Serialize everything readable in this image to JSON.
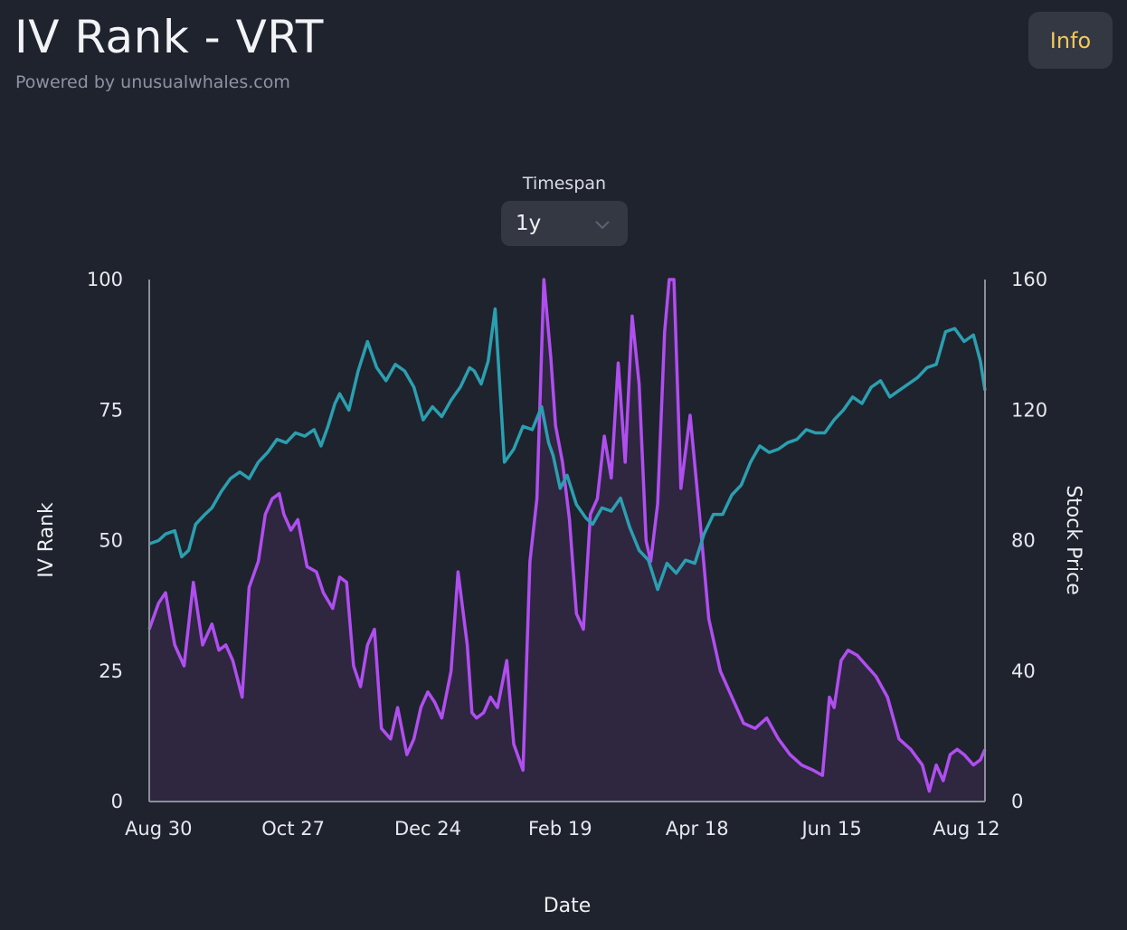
{
  "header": {
    "title": "IV Rank - VRT",
    "subtitle": "Powered by unusualwhales.com",
    "info_label": "Info"
  },
  "controls": {
    "timespan_label": "Timespan",
    "timespan_value": "1y"
  },
  "colors": {
    "iv_rank": "#b04ef0",
    "iv_fill": "#2f2640",
    "stock_price": "#2b9fb0",
    "background": "#1f232d",
    "info_text": "#f1c85c"
  },
  "chart_data": {
    "type": "line",
    "xlabel": "Date",
    "ylabel_left": "IV Rank",
    "ylabel_right": "Stock Price",
    "ylim_left": [
      0,
      100
    ],
    "ylim_right": [
      0,
      160
    ],
    "yticks_left": [
      "0",
      "25",
      "50",
      "75",
      "100"
    ],
    "yticks_right": [
      "0",
      "40",
      "80",
      "120",
      "160"
    ],
    "x_range": [
      "2023-08-26",
      "2024-08-20"
    ],
    "x_ticks": [
      {
        "label": "Aug 30",
        "date": "2023-08-30"
      },
      {
        "label": "Oct 27",
        "date": "2023-10-27"
      },
      {
        "label": "Dec 24",
        "date": "2023-12-24"
      },
      {
        "label": "Feb 19",
        "date": "2024-02-19"
      },
      {
        "label": "Apr 18",
        "date": "2024-04-18"
      },
      {
        "label": "Jun 15",
        "date": "2024-06-15"
      },
      {
        "label": "Aug 12",
        "date": "2024-08-12"
      }
    ],
    "series": [
      {
        "name": "IV Rank",
        "axis": "left",
        "x": [
          "2023-08-26",
          "2023-08-30",
          "2023-09-02",
          "2023-09-06",
          "2023-09-10",
          "2023-09-14",
          "2023-09-18",
          "2023-09-22",
          "2023-09-25",
          "2023-09-28",
          "2023-10-01",
          "2023-10-05",
          "2023-10-08",
          "2023-10-12",
          "2023-10-15",
          "2023-10-18",
          "2023-10-21",
          "2023-10-23",
          "2023-10-26",
          "2023-10-29",
          "2023-11-02",
          "2023-11-06",
          "2023-11-09",
          "2023-11-13",
          "2023-11-16",
          "2023-11-19",
          "2023-11-22",
          "2023-11-25",
          "2023-11-28",
          "2023-12-01",
          "2023-12-04",
          "2023-12-08",
          "2023-12-11",
          "2023-12-15",
          "2023-12-18",
          "2023-12-21",
          "2023-12-24",
          "2023-12-27",
          "2023-12-30",
          "2024-01-03",
          "2024-01-06",
          "2024-01-10",
          "2024-01-12",
          "2024-01-14",
          "2024-01-17",
          "2024-01-20",
          "2024-01-23",
          "2024-01-27",
          "2024-01-30",
          "2024-02-03",
          "2024-02-06",
          "2024-02-09",
          "2024-02-12",
          "2024-02-15",
          "2024-02-17",
          "2024-02-20",
          "2024-02-23",
          "2024-02-26",
          "2024-02-29",
          "2024-03-03",
          "2024-03-06",
          "2024-03-09",
          "2024-03-12",
          "2024-03-15",
          "2024-03-18",
          "2024-03-21",
          "2024-03-24",
          "2024-03-27",
          "2024-03-29",
          "2024-04-01",
          "2024-04-04",
          "2024-04-06",
          "2024-04-08",
          "2024-04-11",
          "2024-04-15",
          "2024-04-19",
          "2024-04-23",
          "2024-04-28",
          "2024-05-03",
          "2024-05-08",
          "2024-05-13",
          "2024-05-18",
          "2024-05-23",
          "2024-05-28",
          "2024-06-02",
          "2024-06-07",
          "2024-06-11",
          "2024-06-14",
          "2024-06-16",
          "2024-06-19",
          "2024-06-22",
          "2024-06-26",
          "2024-06-30",
          "2024-07-04",
          "2024-07-09",
          "2024-07-14",
          "2024-07-19",
          "2024-07-24",
          "2024-07-27",
          "2024-07-30",
          "2024-08-02",
          "2024-08-05",
          "2024-08-08",
          "2024-08-11",
          "2024-08-15",
          "2024-08-18",
          "2024-08-20"
        ],
        "values": [
          33,
          38,
          40,
          30,
          26,
          42,
          30,
          34,
          29,
          30,
          27,
          20,
          41,
          46,
          55,
          58,
          59,
          55,
          52,
          54,
          45,
          44,
          40,
          37,
          43,
          42,
          26,
          22,
          30,
          33,
          14,
          12,
          18,
          9,
          12,
          18,
          21,
          19,
          16,
          25,
          44,
          30,
          17,
          16,
          17,
          20,
          18,
          27,
          11,
          6,
          46,
          58,
          100,
          85,
          72,
          65,
          54,
          36,
          33,
          55,
          58,
          70,
          62,
          84,
          65,
          93,
          80,
          50,
          46,
          57,
          90,
          100,
          100,
          60,
          74,
          55,
          35,
          25,
          20,
          15,
          14,
          16,
          12,
          9,
          7,
          6,
          5,
          20,
          18,
          27,
          29,
          28,
          26,
          24,
          20,
          12,
          10,
          7,
          2,
          7,
          4,
          9,
          10,
          9,
          7,
          8,
          10
        ]
      },
      {
        "name": "Stock Price",
        "axis": "right",
        "x": [
          "2023-08-26",
          "2023-08-30",
          "2023-09-02",
          "2023-09-06",
          "2023-09-09",
          "2023-09-12",
          "2023-09-15",
          "2023-09-19",
          "2023-09-22",
          "2023-09-26",
          "2023-09-30",
          "2023-10-04",
          "2023-10-08",
          "2023-10-12",
          "2023-10-16",
          "2023-10-20",
          "2023-10-24",
          "2023-10-28",
          "2023-11-01",
          "2023-11-05",
          "2023-11-08",
          "2023-11-11",
          "2023-11-14",
          "2023-11-16",
          "2023-11-20",
          "2023-11-24",
          "2023-11-28",
          "2023-12-02",
          "2023-12-06",
          "2023-12-10",
          "2023-12-14",
          "2023-12-18",
          "2023-12-22",
          "2023-12-26",
          "2023-12-30",
          "2024-01-03",
          "2024-01-07",
          "2024-01-11",
          "2024-01-13",
          "2024-01-16",
          "2024-01-19",
          "2024-01-22",
          "2024-01-26",
          "2024-01-30",
          "2024-02-03",
          "2024-02-07",
          "2024-02-11",
          "2024-02-14",
          "2024-02-16",
          "2024-02-19",
          "2024-02-22",
          "2024-02-26",
          "2024-03-01",
          "2024-03-04",
          "2024-03-08",
          "2024-03-12",
          "2024-03-16",
          "2024-03-20",
          "2024-03-24",
          "2024-03-28",
          "2024-04-01",
          "2024-04-05",
          "2024-04-09",
          "2024-04-13",
          "2024-04-17",
          "2024-04-21",
          "2024-04-25",
          "2024-04-29",
          "2024-05-03",
          "2024-05-07",
          "2024-05-11",
          "2024-05-15",
          "2024-05-19",
          "2024-05-23",
          "2024-05-27",
          "2024-05-31",
          "2024-06-04",
          "2024-06-08",
          "2024-06-12",
          "2024-06-16",
          "2024-06-20",
          "2024-06-24",
          "2024-06-28",
          "2024-07-02",
          "2024-07-06",
          "2024-07-10",
          "2024-07-14",
          "2024-07-18",
          "2024-07-22",
          "2024-07-26",
          "2024-07-30",
          "2024-08-03",
          "2024-08-07",
          "2024-08-11",
          "2024-08-15",
          "2024-08-18",
          "2024-08-20"
        ],
        "values": [
          79,
          80,
          82,
          83,
          75,
          77,
          85,
          88,
          90,
          95,
          99,
          101,
          99,
          104,
          107,
          111,
          110,
          113,
          112,
          114,
          109,
          115,
          122,
          125,
          120,
          132,
          141,
          133,
          129,
          134,
          132,
          127,
          117,
          121,
          118,
          123,
          127,
          133,
          132,
          128,
          135,
          151,
          104,
          108,
          115,
          114,
          121,
          110,
          106,
          96,
          100,
          91,
          87,
          85,
          90,
          89,
          93,
          84,
          77,
          74,
          65,
          73,
          70,
          74,
          73,
          82,
          88,
          88,
          94,
          97,
          104,
          109,
          107,
          108,
          110,
          111,
          114,
          113,
          113,
          117,
          120,
          124,
          122,
          127,
          129,
          124,
          126,
          128,
          130,
          133,
          134,
          144,
          145,
          141,
          143,
          135,
          126
        ]
      }
    ]
  }
}
